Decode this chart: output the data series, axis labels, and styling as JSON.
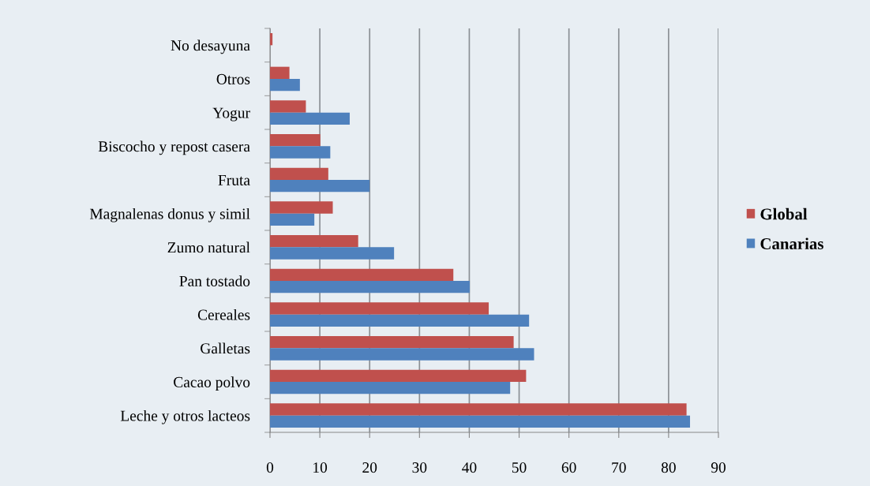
{
  "chart_data": {
    "type": "bar",
    "orientation": "horizontal",
    "categories": [
      "No desayuna",
      "Otros",
      "Yogur",
      "Biscocho y repost casera",
      "Fruta",
      "Magnalenas donus y simil",
      "Zumo natural",
      "Pan tostado",
      "Cereales",
      "Galletas",
      "Cacao polvo",
      "Leche y otros lacteos"
    ],
    "series": [
      {
        "name": "Global",
        "color": "#c0504d",
        "values": [
          0.5,
          3.9,
          7.2,
          10.1,
          11.7,
          12.6,
          17.7,
          36.8,
          43.9,
          48.9,
          51.4,
          83.6
        ]
      },
      {
        "name": "Canarias",
        "color": "#4f81bd",
        "values": [
          0,
          6.0,
          16.0,
          12.1,
          20.0,
          8.9,
          24.9,
          40.1,
          52.0,
          53.0,
          48.2,
          84.3
        ]
      }
    ],
    "xlim": [
      0,
      90
    ],
    "xticks": [
      0,
      10,
      20,
      30,
      40,
      50,
      60,
      70,
      80,
      90
    ],
    "grid": "x",
    "legend": "right"
  }
}
